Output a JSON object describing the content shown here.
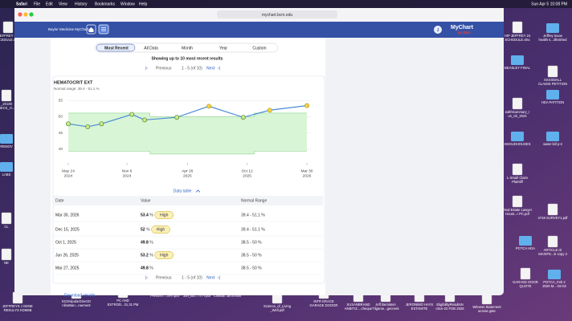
{
  "menu_bar": {
    "app": "Safari",
    "items": [
      "File",
      "Edit",
      "View",
      "History",
      "Bookmarks",
      "Window",
      "Help"
    ],
    "clock": "Sun Apr 5  10:08 PM"
  },
  "browser": {
    "url": "mychart.bcm.edu"
  },
  "header": {
    "brand": "Baylor Medicine MyChart",
    "avatar": "J",
    "logo": "MyChart",
    "logo_sub": "by Epic"
  },
  "filters": {
    "tabs": [
      "Most Recent",
      "All Data",
      "Month",
      "Year",
      "Custom"
    ],
    "note": "Showing up to 10 most recent results"
  },
  "pager_top": {
    "previous": "Previous",
    "range": "1 - 5 (of 10)",
    "next": "Next"
  },
  "result": {
    "title": "HEMATOCRIT EXT",
    "normal_range": "Normal range: 39.4 - 51.1 %",
    "chart": {
      "type": "line",
      "x": [
        "2024-05-24",
        "2024-07-18",
        "2024-08-26",
        "2024-11-20",
        "2024-12-26",
        "2025-03-27",
        "2025-06-26",
        "2025-10-01",
        "2025-12-15",
        "2026-03-30"
      ],
      "values": [
        47.8,
        46.9,
        47.8,
        50.7,
        49.0,
        49.8,
        53.2,
        49.8,
        52,
        53.4
      ],
      "high": [
        false,
        false,
        false,
        false,
        false,
        false,
        true,
        false,
        true,
        true
      ],
      "color": "#4a8bd6",
      "point_color": "#cfe88a",
      "high_color": "#f1d44a",
      "normal_band": {
        "x": [
          "2024-05-24",
          "2025-01-10",
          "2025-11-01",
          "2026-03-30"
        ],
        "low": [
          39.4,
          38.5,
          39.4,
          39.4
        ],
        "high": [
          51.1,
          50,
          51.1,
          51.1
        ],
        "color": "#d8f5d6"
      },
      "xlim": [
        "2024-05-24",
        "2026-03-30"
      ],
      "xticks": [
        {
          "value": "2024-05-24",
          "label": "May 24",
          "year": "2024"
        },
        {
          "value": "2024-11-06",
          "label": "Nov 6",
          "year": "2024"
        },
        {
          "value": "2025-04-26",
          "label": "Apr 26",
          "year": "2025"
        },
        {
          "value": "2025-10-12",
          "label": "Oct 12",
          "year": "2025"
        },
        {
          "value": "2026-03-30",
          "label": "Mar 30",
          "year": "2026"
        }
      ],
      "ylim": [
        37.5,
        57.5
      ],
      "yticks": [
        40,
        45,
        50,
        55
      ]
    },
    "data_table_toggle": "Data table",
    "table": {
      "headers": [
        "Date",
        "Value",
        "Normal Range"
      ],
      "rows": [
        {
          "date": "Mar 30, 2026",
          "value": "53.4",
          "unit": "%",
          "flag": "High",
          "range": "39.4 - 51.1 %"
        },
        {
          "date": "Dec 15, 2025",
          "value": "52",
          "unit": "%",
          "flag": "High",
          "range": "39.4 - 51.1 %"
        },
        {
          "date": "Oct 1, 2025",
          "value": "49.8",
          "unit": "%",
          "flag": null,
          "range": "38.5 - 50 %"
        },
        {
          "date": "Jun 26, 2025",
          "value": "53.2",
          "unit": "%",
          "flag": "High",
          "range": "38.5 - 50 %"
        },
        {
          "date": "Mar 27, 2025",
          "value": "49.8",
          "unit": "%",
          "flag": null,
          "range": "38.5 - 50 %"
        }
      ]
    },
    "pager": {
      "previous": "Previous",
      "range": "1 - 5 (of 10)",
      "next": "Next"
    },
    "download": "Download results"
  },
  "desktop_icons": [
    {
      "lines": [
        "JEFFREY 24",
        "SCEDULE.xlsx"
      ],
      "kind": "doc"
    },
    {
      "lines": [
        "_20180",
        "NECK_H..."
      ],
      "kind": "doc"
    },
    {
      "lines": [
        "REMOV"
      ],
      "kind": "folder"
    },
    {
      "lines": [
        "LABS"
      ],
      "kind": "folder"
    },
    {
      "lines": [
        "CL"
      ],
      "kind": "doc"
    },
    {
      "lines": [
        "NE"
      ],
      "kind": "doc"
    },
    {
      "lines": [
        "HIP JEFFREY 24",
        "SCHEDULE.xlsx"
      ],
      "kind": "doc"
    },
    {
      "lines": [
        "Jeffrey texas",
        "health s...2finished"
      ],
      "kind": "folder"
    },
    {
      "lines": [
        "BEASLEY FINAL"
      ],
      "kind": "folder"
    },
    {
      "lines": [
        "XXXSMALL",
        "CLAIMS PETITION"
      ],
      "kind": "doc"
    },
    {
      "lines": [
        "ealthSummary_I",
        "un_02_2024"
      ],
      "kind": "doc"
    },
    {
      "lines": [
        "HDA PATITION"
      ],
      "kind": "folder"
    },
    {
      "lines": [
        "HHOUDHOUSES"
      ],
      "kind": "folder"
    },
    {
      "lines": [
        "water bill p-2"
      ],
      "kind": "folder"
    },
    {
      "lines": [
        "L-Small Claim",
        "Plaintiff"
      ],
      "kind": "doc"
    },
    {
      "lines": [
        "Real Estate Lawyer",
        "Houst...r PC.pdf"
      ],
      "kind": "doc"
    },
    {
      "lines": [
        "4718 SURVEY1.pdf"
      ],
      "kind": "doc"
    },
    {
      "lines": [
        "POTCA HDA"
      ],
      "kind": "folder"
    },
    {
      "lines": [
        "ARTICLE IX",
        "MAINTE...E copy 3"
      ],
      "kind": "doc"
    },
    {
      "lines": [
        "GARAGE DOOR",
        "QUOTE"
      ],
      "kind": "doc"
    },
    {
      "lines": [
        "POTCA_Feb 2",
        "2026 M...-02-02"
      ],
      "kind": "folder"
    },
    {
      "lines": [
        "JEFFREYS J GENE",
        "RESULYS KDM6B"
      ],
      "kind": "doc"
    },
    {
      "lines": [
        "EG3HipularDirectO",
        "nlineBan...ruement"
      ],
      "kind": "doc"
    },
    {
      "lines": [
        "PC AND",
        "ESTROD...31.31 PM"
      ],
      "kind": "doc"
    },
    {
      "lines": [
        "PARENT....SHT.pdf"
      ],
      "kind": "doc"
    },
    {
      "lines": [
        "Joh_BU...TITY.pdf"
      ],
      "kind": "doc"
    },
    {
      "lines": [
        "Clinical...arch.html"
      ],
      "kind": "doc"
    },
    {
      "lines": [
        "Science_of_Living",
        "_Well.pdf"
      ],
      "kind": "doc"
    },
    {
      "lines": [
        "INTR ERACE",
        "GARAGE DOOOR"
      ],
      "kind": "doc"
    },
    {
      "lines": [
        "SUSANBRAND",
        "ANBITIZ....cheque"
      ],
      "kind": "doc"
    },
    {
      "lines": [
        "Jeff Bernstein",
        "Tilgame...gecreek"
      ],
      "kind": "doc"
    },
    {
      "lines": [
        "JERONIMO HAYS",
        "ESTAMITE"
      ],
      "kind": "doc"
    },
    {
      "lines": [
        "EligibilityResultsN",
        "otice-22 FOB 2026"
      ],
      "kind": "doc"
    },
    {
      "lines": [
        "Witness Statement",
        "across gate"
      ],
      "kind": "doc"
    }
  ]
}
